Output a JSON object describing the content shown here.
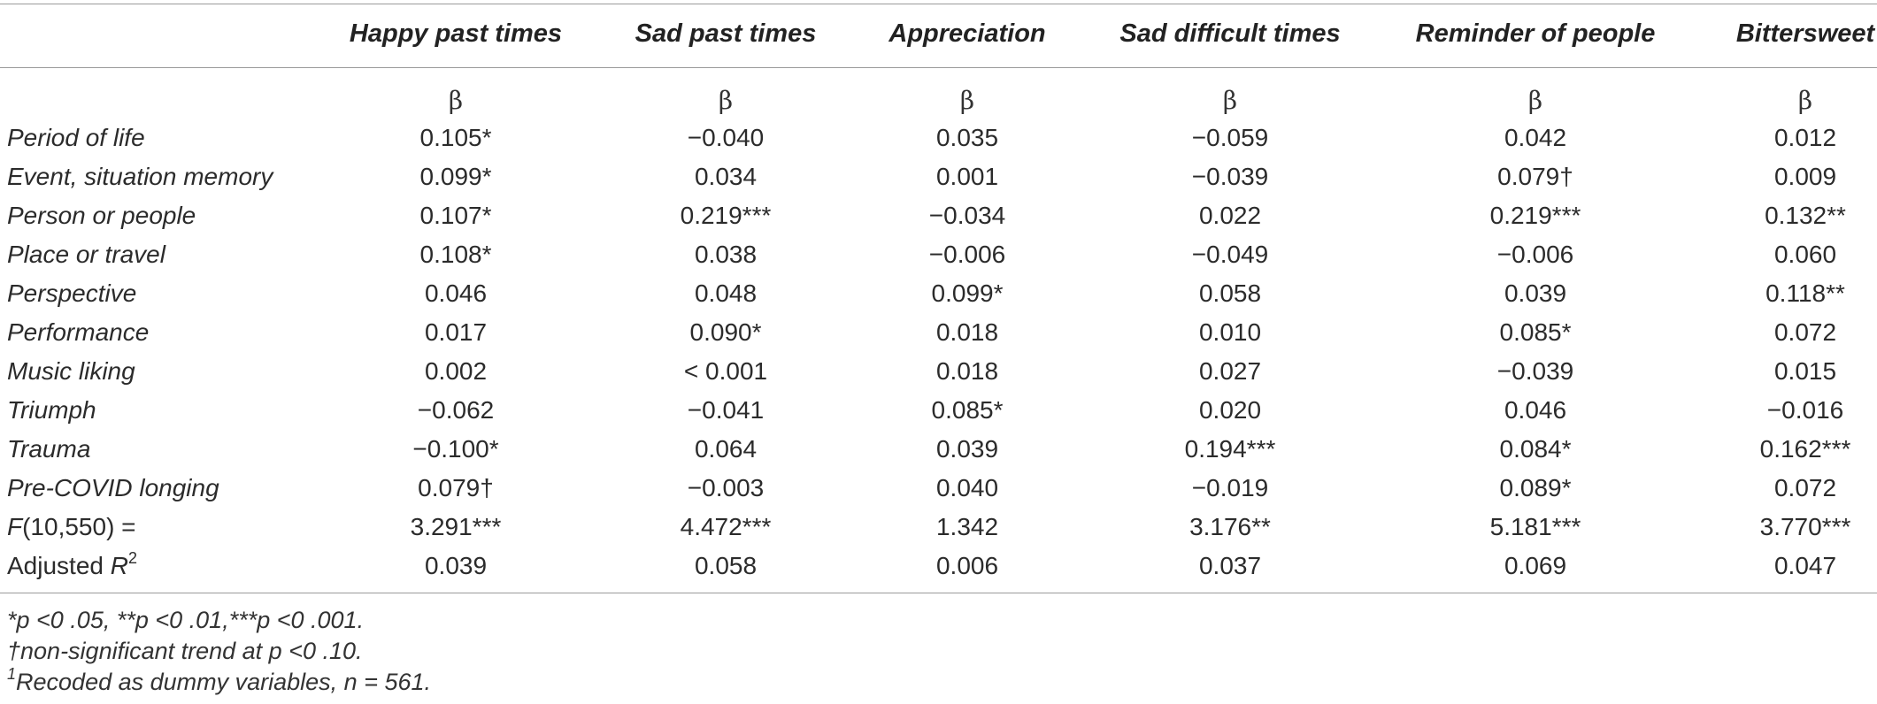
{
  "table": {
    "columns": [
      {
        "label": "Happy past times",
        "sub": "β"
      },
      {
        "label": "Sad past times",
        "sub": "β"
      },
      {
        "label": "Appreciation",
        "sub": "β"
      },
      {
        "label": "Sad difficult times",
        "sub": "β"
      },
      {
        "label": "Reminder of people",
        "sub": "β"
      },
      {
        "label": "Bittersweet",
        "sub": "β"
      }
    ],
    "rows": [
      {
        "label": "Period of life",
        "cells": [
          "0.105*",
          "−0.040",
          "0.035",
          "−0.059",
          "0.042",
          "0.012"
        ]
      },
      {
        "label": "Event, situation memory",
        "cells": [
          "0.099*",
          "0.034",
          "0.001",
          "−0.039",
          "0.079†",
          "0.009"
        ]
      },
      {
        "label": "Person or people",
        "cells": [
          "0.107*",
          "0.219***",
          "−0.034",
          "0.022",
          "0.219***",
          "0.132**"
        ]
      },
      {
        "label": "Place or travel",
        "cells": [
          "0.108*",
          "0.038",
          "−0.006",
          "−0.049",
          "−0.006",
          "0.060"
        ]
      },
      {
        "label": "Perspective",
        "cells": [
          "0.046",
          "0.048",
          "0.099*",
          "0.058",
          "0.039",
          "0.118**"
        ]
      },
      {
        "label": "Performance",
        "cells": [
          "0.017",
          "0.090*",
          "0.018",
          "0.010",
          "0.085*",
          "0.072"
        ]
      },
      {
        "label": "Music liking",
        "cells": [
          "0.002",
          "<  0.001",
          "0.018",
          "0.027",
          "−0.039",
          "0.015"
        ]
      },
      {
        "label": "Triumph",
        "cells": [
          "−0.062",
          "−0.041",
          "0.085*",
          "0.020",
          "0.046",
          "−0.016"
        ]
      },
      {
        "label": "Trauma",
        "cells": [
          "−0.100*",
          "0.064",
          "0.039",
          "0.194***",
          "0.084*",
          "0.162***"
        ]
      },
      {
        "label": "Pre-COVID longing",
        "cells": [
          "0.079†",
          "−0.003",
          "0.040",
          "−0.019",
          "0.089*",
          "0.072"
        ]
      }
    ],
    "f_row": {
      "label_italic": "F",
      "label_rest": "(10,550) =",
      "cells": [
        "3.291***",
        "4.472***",
        "1.342",
        "3.176**",
        "5.181***",
        "3.770***"
      ]
    },
    "r2_row": {
      "label_base": "Adjusted ",
      "label_italic": "R",
      "label_sup": "2",
      "cells": [
        "0.039",
        "0.058",
        "0.006",
        "0.037",
        "0.069",
        "0.047"
      ]
    }
  },
  "footnotes": {
    "significance": "*p <0 .05, **p <0 .01,***p <0 .001.",
    "trend": "†non-significant trend at p <0 .10.",
    "dummy_sup": "1",
    "dummy": "Recoded as dummy variables, n = 561."
  }
}
